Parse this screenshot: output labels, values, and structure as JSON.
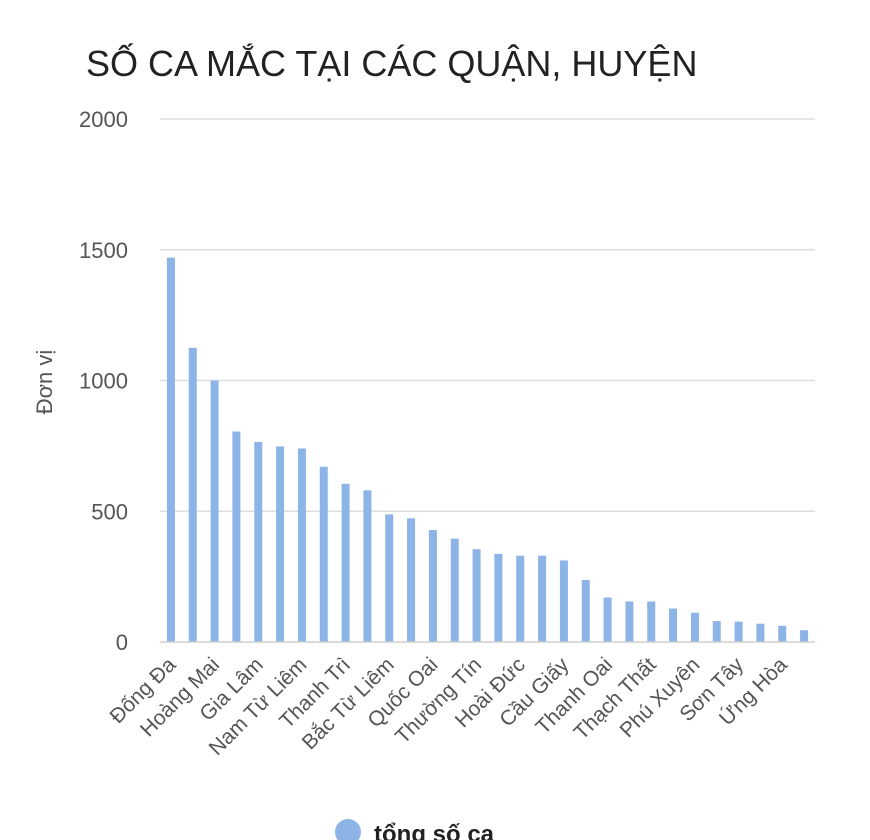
{
  "chart_data": {
    "type": "bar",
    "title": "SỐ CA MẮC TẠI CÁC QUẬN, HUYỆN",
    "xlabel": "",
    "ylabel": "Đơn vị",
    "ylim": [
      0,
      2000
    ],
    "yticks": [
      0,
      500,
      1000,
      1500,
      2000
    ],
    "grid": true,
    "legend_position": "bottom",
    "bar_color": "#8cb4e6",
    "categories": [
      "Đống Đa",
      "",
      "Hoàng Mai",
      "",
      "Gia Lâm",
      "",
      "Nam Từ Liêm",
      "",
      "Thanh Trì",
      "",
      "Bắc Từ Liêm",
      "",
      "Quốc Oai",
      "",
      "Thường Tín",
      "",
      "Hoài Đức",
      "",
      "Cầu Giấy",
      "",
      "Thanh Oai",
      "",
      "Thạch Thất",
      "",
      "Phú Xuyên",
      "",
      "Sơn Tây",
      "",
      "Ứng Hòa",
      ""
    ],
    "series": [
      {
        "name": "tổng số ca",
        "values": [
          1470,
          1125,
          1000,
          805,
          765,
          748,
          740,
          670,
          605,
          580,
          488,
          473,
          428,
          395,
          355,
          337,
          330,
          330,
          312,
          237,
          170,
          155,
          155,
          128,
          112,
          80,
          78,
          70,
          62,
          45
        ]
      }
    ]
  }
}
